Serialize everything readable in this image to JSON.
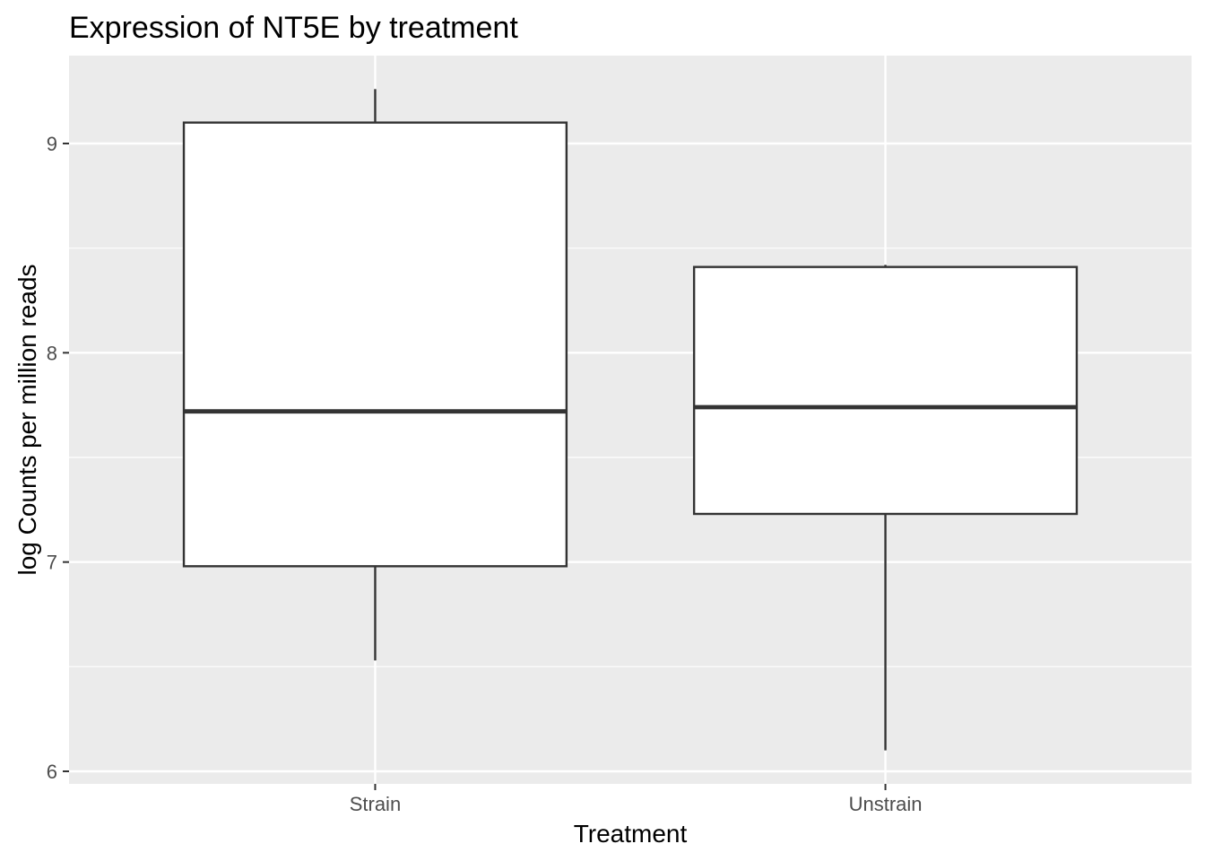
{
  "chart_data": {
    "type": "boxplot",
    "title": "Expression of NT5E by treatment",
    "xlabel": "Treatment",
    "ylabel": "log Counts per million reads",
    "categories": [
      "Strain",
      "Unstrain"
    ],
    "boxes": [
      {
        "category": "Strain",
        "whisker_low": 6.53,
        "q1": 6.98,
        "median": 7.72,
        "q3": 9.1,
        "whisker_high": 9.26
      },
      {
        "category": "Unstrain",
        "whisker_low": 6.1,
        "q1": 7.23,
        "median": 7.74,
        "q3": 8.41,
        "whisker_high": 8.42
      }
    ],
    "yticks": [
      6,
      7,
      8,
      9
    ],
    "ylim": [
      5.94,
      9.42
    ],
    "grid": true,
    "colors": {
      "panel_background": "#ebebeb",
      "grid_line": "#ffffff",
      "box_fill": "#ffffff",
      "box_stroke": "#333333",
      "tick_text": "#4d4d4d"
    }
  }
}
